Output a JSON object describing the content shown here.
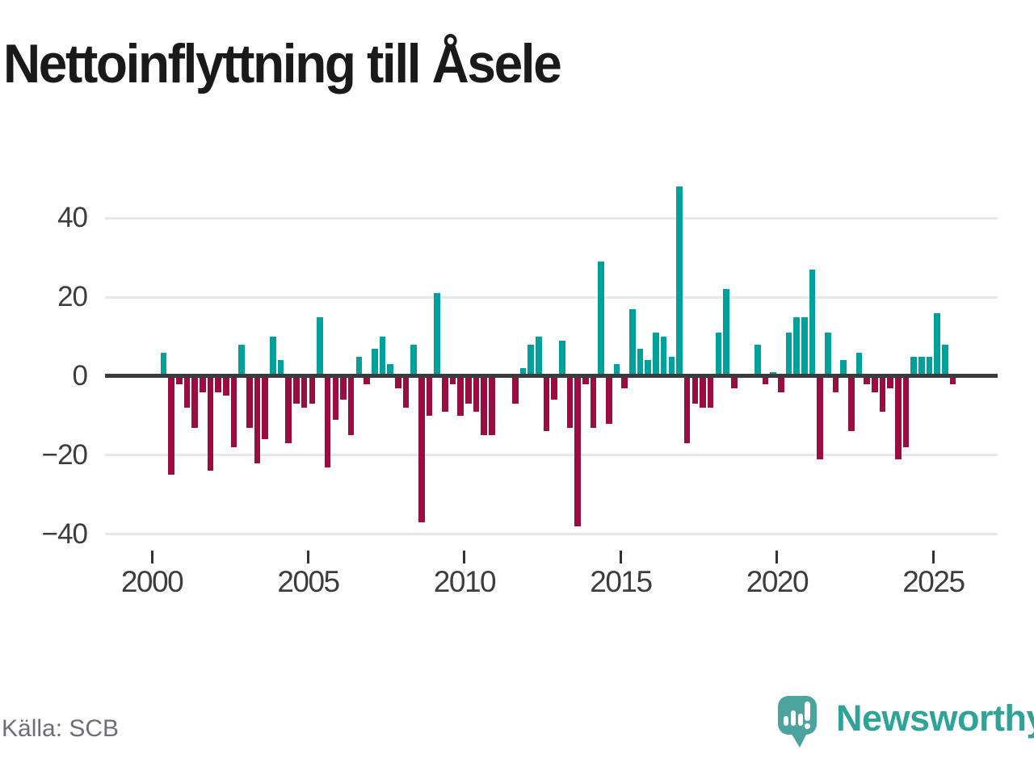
{
  "title": "Nettoinflyttning till Åsele",
  "source": "Källa: SCB",
  "brand": {
    "name": "Newsworthy",
    "logo_icon": "speech-bubble-bar-chart-exclamation"
  },
  "colors": {
    "positive": "#00a09b",
    "negative": "#9b0d40",
    "gridline": "#e8e8e8",
    "zero_line": "#3b3b3b",
    "title_text": "#1a1a1a",
    "axis_text": "#3d3d3d",
    "source_text": "#6e6e78",
    "brand_teal": "#2fa398"
  },
  "chart_data": {
    "type": "bar",
    "title": "Nettoinflyttning till Åsele",
    "xlabel": "",
    "ylabel": "",
    "frequency": "quarterly",
    "start_period": "2000Q1",
    "end_period": "2025Q3",
    "values": [
      0,
      6,
      -25,
      -2,
      -8,
      -13,
      -4,
      -24,
      -4,
      -5,
      -18,
      8,
      -13,
      -22,
      -16,
      10,
      4,
      -17,
      -7,
      -8,
      -7,
      15,
      -23,
      -11,
      -6,
      -15,
      5,
      -2,
      7,
      10,
      3,
      -3,
      -8,
      8,
      -37,
      -10,
      21,
      -9,
      -2,
      -10,
      -7,
      -9,
      -15,
      -15,
      0,
      0,
      -7,
      2,
      8,
      10,
      -14,
      -6,
      9,
      -13,
      -38,
      -2,
      -13,
      29,
      -12,
      3,
      -3,
      17,
      7,
      4,
      11,
      10,
      5,
      48,
      -17,
      -7,
      -8,
      -8,
      11,
      22,
      -3,
      0,
      0,
      8,
      -2,
      1,
      -4,
      11,
      15,
      15,
      27,
      -21,
      11,
      -4,
      4,
      -14,
      6,
      -2,
      -4,
      -9,
      -3,
      -21,
      -18,
      5,
      5,
      5,
      16,
      8,
      -2
    ],
    "y_ticks": [
      40,
      20,
      0,
      -20,
      -40
    ],
    "y_tick_labels": [
      "40",
      "20",
      "0",
      "−20",
      "−40"
    ],
    "x_tick_years": [
      2000,
      2005,
      2010,
      2015,
      2020,
      2025
    ],
    "x_tick_labels": [
      "2000",
      "2005",
      "2010",
      "2015",
      "2020",
      "2025"
    ],
    "ylim": [
      -45,
      52
    ],
    "grid": "horizontal",
    "legend": "none",
    "positive_color": "#00a09b",
    "negative_color": "#9b0d40"
  }
}
